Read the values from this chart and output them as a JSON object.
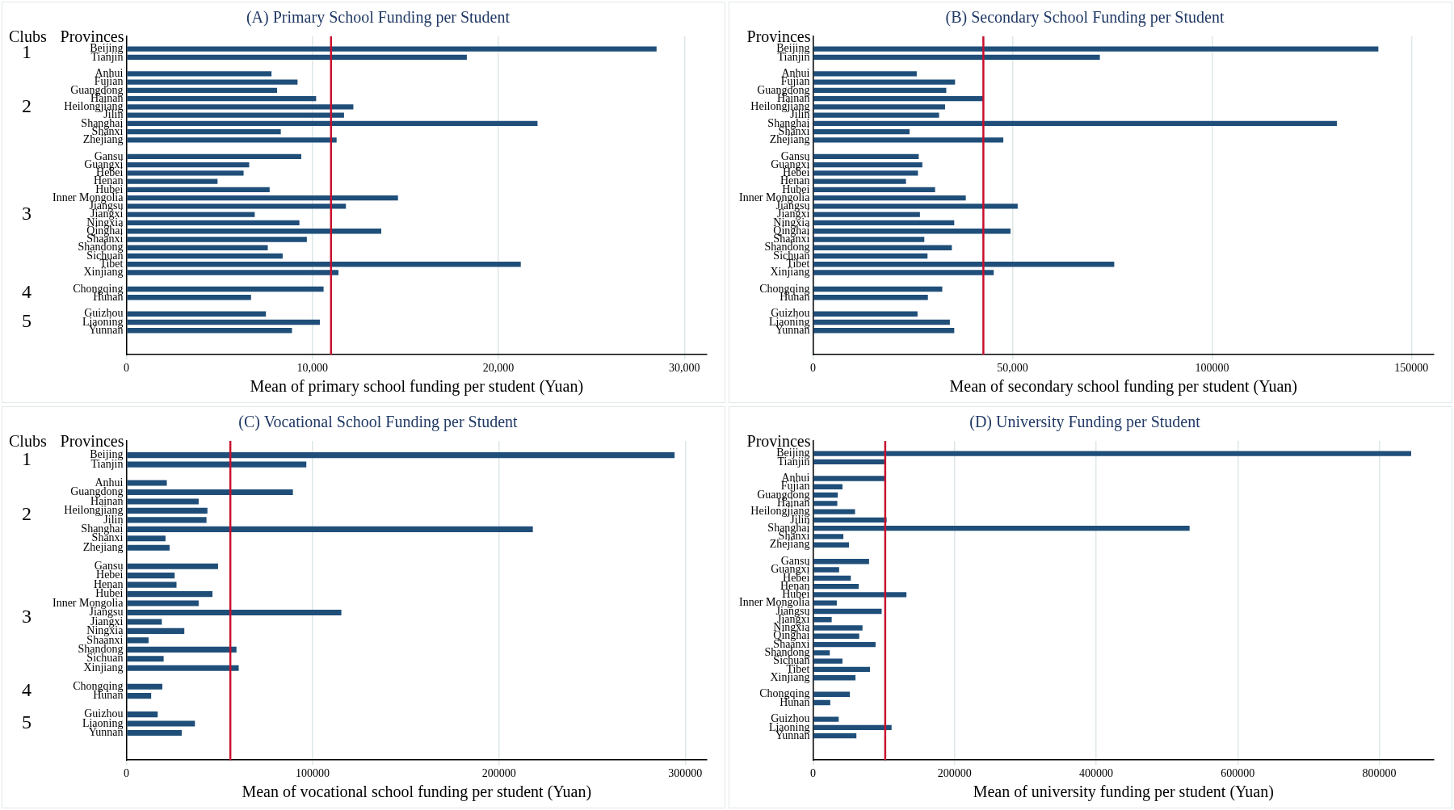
{
  "chart_data": [
    {
      "type": "bar",
      "orientation": "horizontal",
      "title": "(A) Primary School Funding per Student",
      "xlabel": "Mean of primary school funding per student (Yuan)",
      "ylabel": "Provinces",
      "categories": [
        "Beijing",
        "Tianjin",
        null,
        "Anhui",
        "Fujian",
        "Guangdong",
        "Hainan",
        "Heilongjiang",
        "Jilin",
        "Shanghai",
        "Shanxi",
        "Zhejiang",
        null,
        "Gansu",
        "Guangxi",
        "Hebei",
        "Henan",
        "Hubei",
        "Inner Mongolia",
        "Jiangsu",
        "Jiangxi",
        "Ningxia",
        "Qinghai",
        "Shaanxi",
        "Shandong",
        "Sichuan",
        "Tibet",
        "Xinjiang",
        null,
        "Chongqing",
        "Hunan",
        null,
        "Guizhou",
        "Liaoning",
        "Yunnan"
      ],
      "values": [
        28500,
        18300,
        null,
        7800,
        9200,
        8100,
        10200,
        12200,
        11700,
        22100,
        8300,
        11300,
        null,
        9400,
        6600,
        6300,
        4900,
        7700,
        14600,
        11800,
        6900,
        9300,
        13700,
        9700,
        7600,
        8400,
        21200,
        11400,
        null,
        10600,
        6700,
        null,
        7500,
        10400,
        8900
      ],
      "color": "#1f4e79",
      "xlim": [
        0,
        31200
      ],
      "xticks": [
        0,
        {
          "value": 10000,
          "label": "10,000"
        },
        {
          "value": 20000,
          "label": "20,000"
        },
        {
          "value": 30000,
          "label": "30,000"
        }
      ],
      "grid": "x",
      "ref_lines": [
        {
          "axis": "x",
          "value": 11000,
          "color": "#c8102e"
        }
      ],
      "annotations": [
        "Clubs",
        "1",
        "2",
        "3",
        "4",
        "5"
      ]
    },
    {
      "type": "bar",
      "orientation": "horizontal",
      "title": "(B) Secondary School Funding per Student",
      "xlabel": "Mean of secondary school funding per student (Yuan)",
      "ylabel": "Provinces",
      "categories": [
        "Beijing",
        "Tianjin",
        null,
        "Anhui",
        "Fujian",
        "Guangdong",
        "Hainan",
        "Heilongjiang",
        "Jilin",
        "Shanghai",
        "Shanxi",
        "Zhejiang",
        null,
        "Gansu",
        "Guangxi",
        "Hebei",
        "Henan",
        "Hubei",
        "Inner Mongolia",
        "Jiangsu",
        "Jiangxi",
        "Ningxia",
        "Qinghai",
        "Shaanxi",
        "Shandong",
        "Sichuan",
        "Tibet",
        "Xinjiang",
        null,
        "Chongqing",
        "Hunan",
        null,
        "Guizhou",
        "Liaoning",
        "Yunnan"
      ],
      "values": [
        141700,
        71900,
        null,
        26000,
        35600,
        33400,
        42700,
        33100,
        31600,
        131300,
        24200,
        47700,
        null,
        26500,
        27400,
        26300,
        23300,
        30600,
        38300,
        51300,
        26800,
        35400,
        49500,
        27900,
        34800,
        28700,
        75500,
        45300,
        null,
        32400,
        28800,
        null,
        26200,
        34300,
        35400
      ],
      "color": "#1f4e79",
      "xlim": [
        0,
        155600
      ],
      "xticks": [
        0,
        {
          "value": 50000,
          "label": "50,000"
        },
        100000,
        150000
      ],
      "grid": "x",
      "ref_lines": [
        {
          "axis": "x",
          "value": 42700,
          "color": "#c8102e"
        }
      ]
    },
    {
      "type": "bar",
      "orientation": "horizontal",
      "title": "(C) Vocational School Funding per Student",
      "xlabel": "Mean of vocational school funding per student (Yuan)",
      "ylabel": "Provinces",
      "categories": [
        "Beijing",
        "Tianjin",
        null,
        "Anhui",
        "Guangdong",
        "Hainan",
        "Heilongjiang",
        "Jilin",
        "Shanghai",
        "Shanxi",
        "Zhejiang",
        null,
        "Gansu",
        "Hebei",
        "Henan",
        "Hubei",
        "Inner Mongolia",
        "Jiangsu",
        "Jiangxi",
        "Ningxia",
        "Shaanxi",
        "Shandong",
        "Sichuan",
        "Xinjiang",
        null,
        "Chongqing",
        "Hunan",
        null,
        "Guizhou",
        "Liaoning",
        "Yunnan"
      ],
      "values": [
        294300,
        96600,
        null,
        21700,
        89400,
        38800,
        43500,
        43000,
        218200,
        21000,
        23200,
        null,
        49200,
        25900,
        26900,
        46200,
        38800,
        115400,
        19000,
        31100,
        11900,
        59100,
        20000,
        60300,
        null,
        19300,
        13300,
        null,
        16800,
        36800,
        29700
      ],
      "color": "#1f4e79",
      "xlim": [
        0,
        311600
      ],
      "xticks": [
        0,
        100000,
        200000,
        300000
      ],
      "grid": "x",
      "ref_lines": [
        {
          "axis": "x",
          "value": 55800,
          "color": "#c8102e"
        }
      ],
      "annotations": [
        "Clubs",
        "1",
        "2",
        "3",
        "4",
        "5"
      ]
    },
    {
      "type": "bar",
      "orientation": "horizontal",
      "title": "(D) University Funding per Student",
      "xlabel": "Mean of university funding per student (Yuan)",
      "ylabel": "Provinces",
      "categories": [
        "Beijing",
        "Tianjin",
        null,
        "Anhui",
        "Fujian",
        "Guangdong",
        "Hainan",
        "Heilongjiang",
        "Jilin",
        "Shanghai",
        "Shanxi",
        "Zhejiang",
        null,
        "Gansu",
        "Guangxi",
        "Hebei",
        "Henan",
        "Hubei",
        "Inner Mongolia",
        "Jiangsu",
        "Jiangxi",
        "Ningxia",
        "Qinghai",
        "Shaanxi",
        "Shandong",
        "Sichuan",
        "Tibet",
        "Xinjiang",
        null,
        "Chongqing",
        "Hunan",
        null,
        "Guizhou",
        "Liaoning",
        "Yunnan"
      ],
      "values": [
        845000,
        101000,
        null,
        102000,
        41600,
        35000,
        34300,
        59400,
        104000,
        532000,
        42900,
        50800,
        null,
        79200,
        36900,
        53400,
        64600,
        132000,
        33600,
        97000,
        26400,
        69900,
        65300,
        88400,
        23700,
        41600,
        80500,
        60000,
        null,
        52100,
        24400,
        null,
        36300,
        111000,
        61300
      ],
      "color": "#1f4e79",
      "xlim": [
        0,
        877000
      ],
      "xticks": [
        0,
        200000,
        400000,
        600000,
        800000
      ],
      "grid": "x",
      "ref_lines": [
        {
          "axis": "x",
          "value": 102000,
          "color": "#c8102e"
        }
      ]
    }
  ]
}
